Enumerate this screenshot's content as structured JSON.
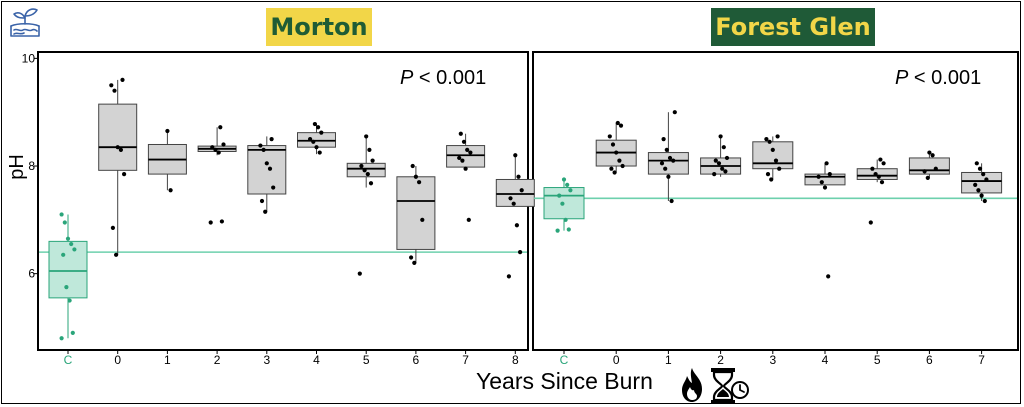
{
  "chart_data": [
    {
      "type": "box",
      "title": "Morton",
      "title_bg": "#f2d648",
      "title_fg": "#1f5c35",
      "annotation_italic": "P",
      "annotation_rest": " < 0.001",
      "ylabel": "pH",
      "ylim": [
        4.6,
        10.1
      ],
      "yticks": [
        "6",
        "8",
        "10"
      ],
      "ref_line": 6.4,
      "categories": [
        "C",
        "0",
        "1",
        "2",
        "3",
        "4",
        "5",
        "6",
        "7",
        "8"
      ],
      "control_color": "#2aa57a",
      "box_fill": "#d3d3d3",
      "boxes": [
        {
          "q1": 5.55,
          "median": 6.05,
          "q3": 6.6,
          "wlo": 4.8,
          "whi": 7.1
        },
        {
          "q1": 7.92,
          "median": 8.35,
          "q3": 9.15,
          "wlo": 6.35,
          "whi": 9.6
        },
        {
          "q1": 7.85,
          "median": 8.12,
          "q3": 8.4,
          "wlo": 7.55,
          "whi": 8.65
        },
        {
          "q1": 8.27,
          "median": 8.32,
          "q3": 8.37,
          "wlo": 8.2,
          "whi": 8.72
        },
        {
          "q1": 7.48,
          "median": 8.3,
          "q3": 8.38,
          "wlo": 7.15,
          "whi": 8.55
        },
        {
          "q1": 8.35,
          "median": 8.47,
          "q3": 8.62,
          "wlo": 8.22,
          "whi": 8.78
        },
        {
          "q1": 7.8,
          "median": 7.95,
          "q3": 8.05,
          "wlo": 7.6,
          "whi": 8.55
        },
        {
          "q1": 6.45,
          "median": 7.35,
          "q3": 7.8,
          "wlo": 6.2,
          "whi": 8.0
        },
        {
          "q1": 7.98,
          "median": 8.2,
          "q3": 8.38,
          "wlo": 7.95,
          "whi": 8.6
        },
        {
          "q1": 7.25,
          "median": 7.48,
          "q3": 7.75,
          "wlo": 7.25,
          "whi": 8.2
        }
      ],
      "points": [
        [
          4.8,
          4.9,
          5.5,
          5.75,
          6.35,
          6.45,
          6.55,
          6.65,
          6.95,
          7.1
        ],
        [
          6.35,
          6.85,
          7.85,
          8.3,
          8.35,
          9.4,
          9.5,
          9.6
        ],
        [
          7.55,
          8.65
        ],
        [
          6.95,
          6.97,
          8.25,
          8.3,
          8.35,
          8.4,
          8.72
        ],
        [
          7.15,
          7.35,
          7.6,
          7.95,
          8.05,
          8.3,
          8.38,
          8.5
        ],
        [
          8.25,
          8.35,
          8.45,
          8.5,
          8.62,
          8.72,
          8.78
        ],
        [
          6.0,
          7.68,
          7.85,
          7.92,
          8.0,
          8.1,
          8.3,
          8.55
        ],
        [
          6.2,
          6.3,
          7.0,
          7.7,
          7.8,
          8.0
        ],
        [
          7.0,
          7.95,
          8.1,
          8.15,
          8.25,
          8.3,
          8.45,
          8.6
        ],
        [
          5.95,
          6.4,
          6.9,
          7.3,
          7.4,
          7.55,
          7.8,
          8.2
        ]
      ]
    },
    {
      "type": "box",
      "title": "Forest Glen",
      "title_bg": "#1f5a37",
      "title_fg": "#f2d648",
      "annotation_italic": "P",
      "annotation_rest": " < 0.001",
      "ylim": [
        4.6,
        10.1
      ],
      "ref_line": 7.4,
      "categories": [
        "C",
        "0",
        "1",
        "2",
        "3",
        "4",
        "5",
        "6",
        "7"
      ],
      "control_color": "#2aa57a",
      "box_fill": "#d3d3d3",
      "boxes": [
        {
          "q1": 7.02,
          "median": 7.45,
          "q3": 7.6,
          "wlo": 6.8,
          "whi": 7.75
        },
        {
          "q1": 8.0,
          "median": 8.25,
          "q3": 8.48,
          "wlo": 7.88,
          "whi": 8.8
        },
        {
          "q1": 7.85,
          "median": 8.1,
          "q3": 8.25,
          "wlo": 7.35,
          "whi": 9.0
        },
        {
          "q1": 7.85,
          "median": 8.0,
          "q3": 8.15,
          "wlo": 7.8,
          "whi": 8.55
        },
        {
          "q1": 7.95,
          "median": 8.05,
          "q3": 8.45,
          "wlo": 7.75,
          "whi": 8.55
        },
        {
          "q1": 7.65,
          "median": 7.8,
          "q3": 7.85,
          "wlo": 7.6,
          "whi": 8.05
        },
        {
          "q1": 7.75,
          "median": 7.82,
          "q3": 7.95,
          "wlo": 7.7,
          "whi": 8.12
        },
        {
          "q1": 7.85,
          "median": 7.92,
          "q3": 8.15,
          "wlo": 7.78,
          "whi": 8.25
        },
        {
          "q1": 7.5,
          "median": 7.72,
          "q3": 7.88,
          "wlo": 7.35,
          "whi": 8.05
        }
      ],
      "points": [
        [
          6.8,
          6.82,
          7.0,
          7.3,
          7.45,
          7.55,
          7.65,
          7.75
        ],
        [
          7.88,
          7.95,
          8.0,
          8.1,
          8.25,
          8.4,
          8.55,
          8.75,
          8.8
        ],
        [
          7.35,
          7.8,
          7.95,
          8.05,
          8.1,
          8.15,
          8.3,
          8.5,
          9.0
        ],
        [
          7.85,
          7.9,
          7.95,
          8.05,
          8.1,
          8.15,
          8.35,
          8.55
        ],
        [
          7.75,
          7.85,
          7.95,
          8.1,
          8.3,
          8.45,
          8.5,
          8.55
        ],
        [
          5.95,
          7.6,
          7.7,
          7.8,
          7.85,
          8.05
        ],
        [
          6.95,
          7.7,
          7.8,
          7.85,
          7.95,
          8.05,
          8.12
        ],
        [
          7.78,
          7.9,
          7.95,
          8.2,
          8.25
        ],
        [
          7.35,
          7.45,
          7.55,
          7.65,
          7.75,
          7.85,
          7.95,
          8.05
        ]
      ]
    }
  ],
  "xlabel": "Years Since Burn",
  "icons": {
    "logo": "plant-soil-icon",
    "fire": "fire-icon",
    "hourglass": "hourglass-clock-icon"
  }
}
